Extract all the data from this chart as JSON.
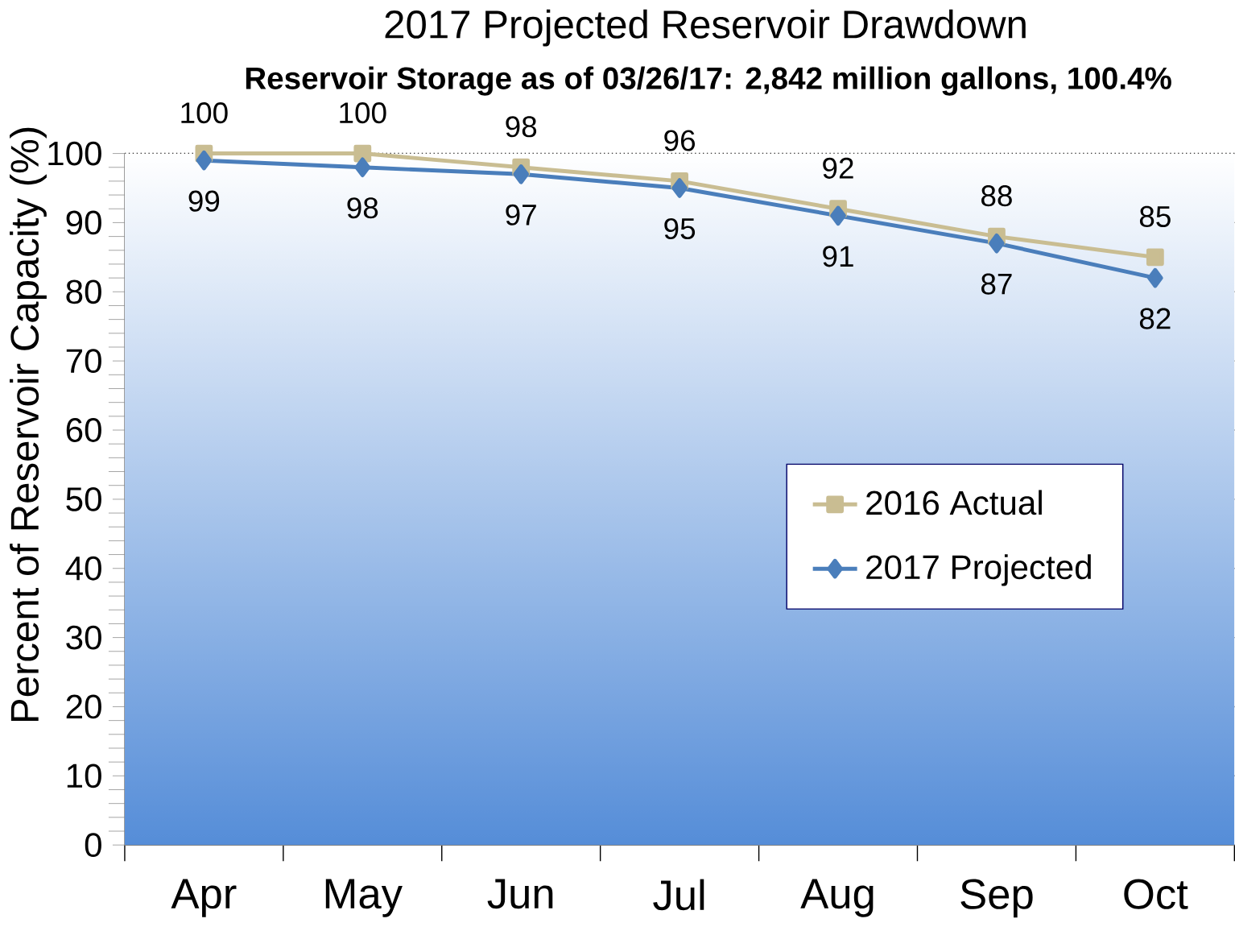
{
  "chart_data": {
    "type": "line",
    "title": "2017 Projected Reservoir Drawdown",
    "subtitle": "Reservoir Storage as of 03/26/17: 2,842 million gallons, 100.4%",
    "ylabel": "Percent of Reservoir Capacity (%)",
    "categories": [
      "Apr",
      "May",
      "Jun",
      "Jul",
      "Aug",
      "Sep",
      "Oct"
    ],
    "series": [
      {
        "name": "2016 Actual",
        "color": "#c9bd92",
        "marker": "square",
        "values": [
          100,
          100,
          98,
          96,
          92,
          88,
          85
        ]
      },
      {
        "name": "2017 Projected",
        "color": "#4a7ebb",
        "marker": "diamond",
        "values": [
          99,
          98,
          97,
          95,
          91,
          87,
          82
        ]
      }
    ],
    "ylim": [
      0,
      100
    ],
    "yticks": [
      0,
      10,
      20,
      30,
      40,
      50,
      60,
      70,
      80,
      90,
      100
    ],
    "grid": "y",
    "legend": "right",
    "data_labels": true,
    "line_style": "solid"
  }
}
